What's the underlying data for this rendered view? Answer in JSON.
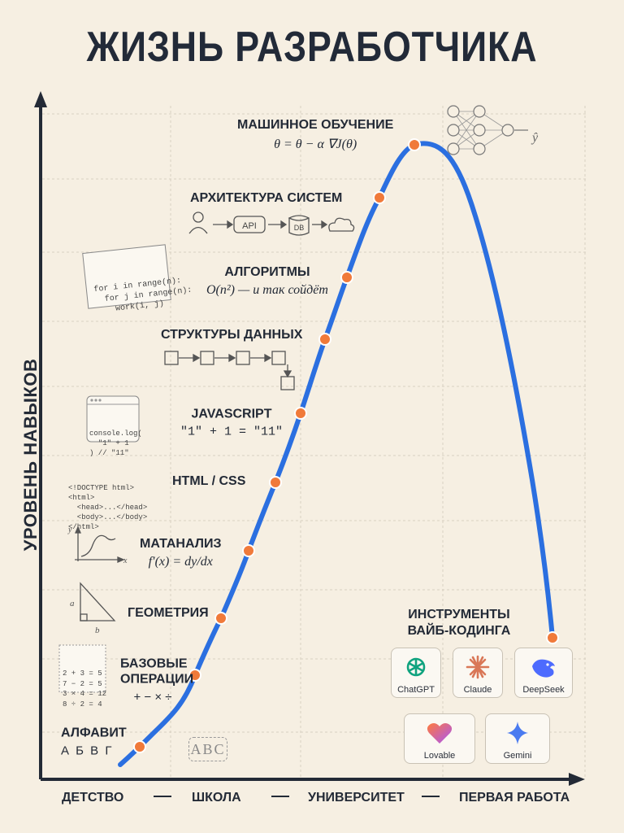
{
  "title": "ЖИЗНЬ РАЗРАБОТЧИКА",
  "chart_data": {
    "type": "line",
    "ylabel": "УРОВЕНЬ НАВЫКОВ",
    "x_categories": [
      "ДЕТСТВО",
      "ШКОЛА",
      "УНИВЕРСИТЕТ",
      "ПЕРВАЯ РАБОТА"
    ],
    "grid": true,
    "line_color": "#2b6fe0",
    "point_color": "#f07a3a",
    "points": [
      {
        "label": "АЛФАВИТ",
        "sub": "А Б В Г"
      },
      {
        "label": "БАЗОВЫЕ ОПЕРАЦИИ",
        "sub": "+ − × ÷"
      },
      {
        "label": "ГЕОМЕТРИЯ",
        "sub": ""
      },
      {
        "label": "МАТАНАЛИЗ",
        "sub": "f′(x) = dy/dx"
      },
      {
        "label": "HTML / CSS",
        "sub": ""
      },
      {
        "label": "JAVASCRIPT",
        "sub": "\"1\" + 1 = \"11\""
      },
      {
        "label": "СТРУКТУРЫ ДАННЫХ",
        "sub": ""
      },
      {
        "label": "АЛГОРИТМЫ",
        "sub": "O(n²) — и так сойдёт"
      },
      {
        "label": "АРХИТЕКТУРА СИСТЕМ",
        "sub": ""
      },
      {
        "label": "МАШИННОЕ ОБУЧЕНИЕ",
        "sub": "θ = θ − α ∇J(θ)"
      },
      {
        "label": "ИНСТРУМЕНТЫ ВАЙБ-КОДИНГА",
        "sub": ""
      }
    ]
  },
  "annotations": {
    "loop_code": [
      "for i in range(n):",
      "  for j in range(n):",
      "    work(i, j)"
    ],
    "console_code": [
      "console.log(",
      "  \"1\" + 1",
      ") // \"11\""
    ],
    "html_code": [
      "<!DOCTYPE html>",
      "<html>",
      "  <head>...</head>",
      "  <body>...</body>",
      "</html>"
    ],
    "arith": [
      "2 + 3 = 5",
      "7 − 2 = 5",
      "3 × 4 = 12",
      "8 ÷ 2 = 4"
    ],
    "abc": "ABC",
    "arch": {
      "api": "API",
      "db": "DB"
    },
    "tri_a": "a",
    "tri_b": "b",
    "graph_x": "x",
    "graph_y": "y",
    "ml_output": "ŷ"
  },
  "tools": [
    {
      "name": "ChatGPT",
      "icon": "chatgpt-icon",
      "color": "#10a37f"
    },
    {
      "name": "Claude",
      "icon": "claude-icon",
      "color": "#d97757"
    },
    {
      "name": "DeepSeek",
      "icon": "deepseek-icon",
      "color": "#4d6bfe"
    },
    {
      "name": "Lovable",
      "icon": "lovable-icon",
      "color": "#e0457b"
    },
    {
      "name": "Gemini",
      "icon": "gemini-icon",
      "color": "#4a7bf0"
    }
  ]
}
